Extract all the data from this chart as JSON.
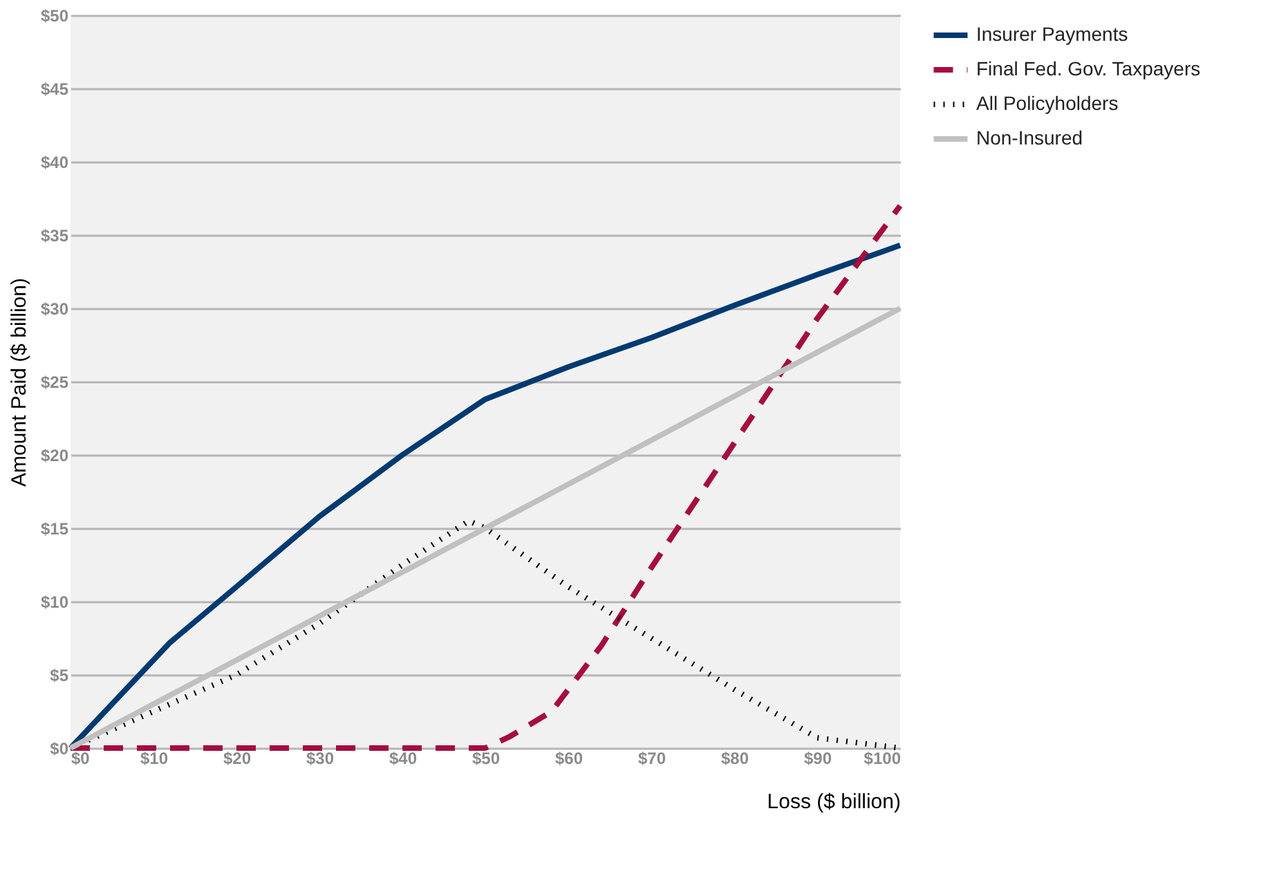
{
  "chart_data": {
    "type": "line",
    "xlabel": "Loss ($ billion)",
    "ylabel": "Amount Paid ($ billion)",
    "xlim": [
      0,
      100
    ],
    "ylim": [
      0,
      50
    ],
    "xticks": [
      {
        "value": 0,
        "label": "$0"
      },
      {
        "value": 10,
        "label": "$10"
      },
      {
        "value": 20,
        "label": "$20"
      },
      {
        "value": 30,
        "label": "$30"
      },
      {
        "value": 40,
        "label": "$40"
      },
      {
        "value": 50,
        "label": "$50"
      },
      {
        "value": 60,
        "label": "$60"
      },
      {
        "value": 70,
        "label": "$70"
      },
      {
        "value": 80,
        "label": "$80"
      },
      {
        "value": 90,
        "label": "$90"
      },
      {
        "value": 100,
        "label": "$100"
      }
    ],
    "yticks": [
      {
        "value": 0,
        "label": "$0"
      },
      {
        "value": 5,
        "label": "$5"
      },
      {
        "value": 10,
        "label": "$10"
      },
      {
        "value": 15,
        "label": "$15"
      },
      {
        "value": 20,
        "label": "$20"
      },
      {
        "value": 25,
        "label": "$25"
      },
      {
        "value": 30,
        "label": "$30"
      },
      {
        "value": 35,
        "label": "$35"
      },
      {
        "value": 40,
        "label": "$40"
      },
      {
        "value": 45,
        "label": "$45"
      },
      {
        "value": 50,
        "label": "$50"
      }
    ],
    "grid": "y",
    "legend": "top right",
    "marker": "none",
    "series": [
      {
        "name": "Insurer Payments",
        "color": "#003a70",
        "line_style": "solid",
        "x": [
          0,
          12,
          20,
          30,
          40,
          50,
          60,
          70,
          80,
          90,
          100
        ],
        "values": [
          0,
          7.2,
          11,
          15.8,
          20,
          23.8,
          26,
          28,
          30.2,
          32.3,
          34.3
        ]
      },
      {
        "name": "Final Fed. Gov. Taxpayers",
        "color": "#a50d3d",
        "line_style": "dashed",
        "x": [
          0,
          50,
          53,
          58,
          60,
          64,
          70,
          80,
          90,
          100
        ],
        "values": [
          0,
          0,
          0.8,
          2.5,
          4,
          7,
          12.3,
          20.8,
          29.3,
          37
        ]
      },
      {
        "name": "All Policyholders",
        "color": "#000000",
        "line_style": "dotted",
        "x": [
          0,
          10,
          20,
          30,
          40,
          48,
          50,
          60,
          70,
          80,
          90,
          100
        ],
        "values": [
          0,
          2.5,
          5,
          8.5,
          12.5,
          15.5,
          15,
          11,
          7.5,
          4,
          0.7,
          0
        ]
      },
      {
        "name": "Non-Insured",
        "color": "#c0c0c0",
        "line_style": "solid",
        "x": [
          0,
          100
        ],
        "values": [
          0,
          30
        ]
      }
    ]
  }
}
